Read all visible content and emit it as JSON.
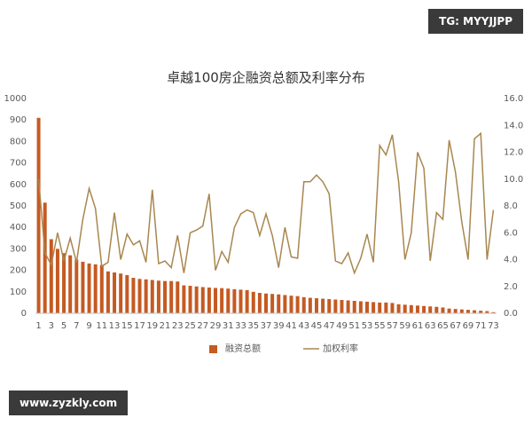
{
  "watermarks": [
    "TG: MYYJJPP",
    "www.zyzkly.com"
  ],
  "chart_data": {
    "type": "bar_line",
    "title": "卓越100房企融资总额及利率分布",
    "categories": [
      1,
      null,
      3,
      null,
      5,
      null,
      7,
      null,
      9,
      null,
      11,
      null,
      13,
      null,
      15,
      null,
      17,
      null,
      19,
      null,
      21,
      null,
      23,
      null,
      25,
      null,
      27,
      null,
      29,
      null,
      31,
      null,
      33,
      null,
      35,
      null,
      37,
      null,
      39,
      null,
      41,
      null,
      43,
      null,
      45,
      null,
      47,
      null,
      49,
      null,
      51,
      null,
      53,
      null,
      55,
      null,
      57,
      null,
      59,
      null,
      61,
      null,
      63,
      null,
      65,
      null,
      67,
      null,
      69,
      null,
      71,
      null,
      73
    ],
    "series": [
      {
        "name": "融资总额",
        "color": "#c55a22",
        "values": [
          910,
          515,
          345,
          300,
          280,
          270,
          250,
          240,
          232,
          228,
          225,
          195,
          190,
          185,
          178,
          165,
          160,
          158,
          155,
          152,
          150,
          150,
          148,
          130,
          128,
          125,
          122,
          120,
          118,
          117,
          115,
          112,
          110,
          108,
          100,
          95,
          92,
          90,
          88,
          85,
          82,
          80,
          75,
          72,
          70,
          68,
          66,
          64,
          62,
          60,
          58,
          56,
          54,
          52,
          50,
          50,
          48,
          42,
          40,
          38,
          36,
          34,
          32,
          30,
          27,
          22,
          20,
          18,
          16,
          14,
          12,
          10,
          5
        ]
      },
      {
        "name": "加权利率",
        "color": "#a8874f",
        "axis": "y2",
        "values": [
          10.0,
          4.5,
          3.6,
          6.0,
          3.9,
          5.6,
          3.8,
          7.0,
          9.3,
          7.8,
          3.5,
          3.8,
          7.5,
          4.0,
          5.9,
          5.1,
          5.4,
          3.8,
          9.2,
          3.7,
          3.9,
          3.4,
          5.8,
          3.0,
          6.0,
          6.2,
          6.5,
          8.9,
          3.2,
          4.6,
          3.8,
          6.4,
          7.4,
          7.7,
          7.5,
          5.8,
          7.4,
          5.8,
          3.4,
          6.4,
          4.2,
          4.1,
          9.8,
          9.8,
          10.3,
          9.8,
          8.9,
          3.9,
          3.7,
          4.5,
          3.0,
          4.1,
          5.9,
          3.8,
          12.5,
          11.8,
          13.3,
          9.8,
          4.0,
          6.0,
          12.0,
          10.8,
          3.9,
          7.5,
          7.0,
          12.9,
          10.5,
          6.8,
          4.0,
          13.0,
          13.4,
          4.0,
          7.7
        ]
      }
    ],
    "ylim": [
      0,
      1000
    ],
    "yticks": [
      0,
      100,
      200,
      300,
      400,
      500,
      600,
      700,
      800,
      900,
      1000
    ],
    "y2lim": [
      0,
      16
    ],
    "y2ticks": [
      {
        "value": 0,
        "label": "0.0"
      },
      {
        "value": 2,
        "label": "2.0"
      },
      {
        "value": 4,
        "label": "4.0"
      },
      {
        "value": 6,
        "label": "6.0"
      },
      {
        "value": 8,
        "label": "8.0"
      },
      {
        "value": 10,
        "label": "10.0"
      },
      {
        "value": 12,
        "label": "12.0"
      },
      {
        "value": 14,
        "label": "14.0"
      },
      {
        "value": 16,
        "label": "16.0"
      }
    ],
    "grid": false,
    "legend": "bottom"
  }
}
